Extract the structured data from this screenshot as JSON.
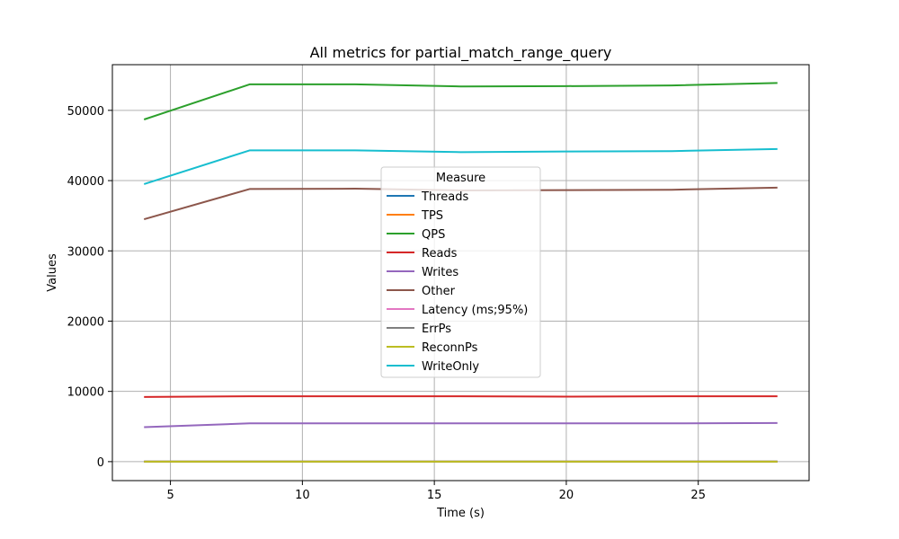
{
  "chart_data": {
    "type": "line",
    "title": "All metrics for partial_match_range_query",
    "xlabel": "Time (s)",
    "ylabel": "Values",
    "xlim": [
      2.8,
      29.2
    ],
    "ylim": [
      -2700,
      56500
    ],
    "xticks": [
      5,
      10,
      15,
      20,
      25
    ],
    "yticks": [
      0,
      10000,
      20000,
      30000,
      40000,
      50000
    ],
    "grid": true,
    "legend": {
      "title": "Measure",
      "placement": "center"
    },
    "x": [
      4,
      8,
      12,
      16,
      20,
      24,
      28
    ],
    "series": [
      {
        "name": "Threads",
        "color": "#1f77b4",
        "values": [
          16,
          16,
          16,
          16,
          16,
          16,
          16
        ]
      },
      {
        "name": "TPS",
        "color": "#ff7f0e",
        "values": [
          0,
          0,
          0,
          0,
          0,
          0,
          0
        ]
      },
      {
        "name": "QPS",
        "color": "#2ca02c",
        "values": [
          48700,
          53700,
          53700,
          53400,
          53450,
          53550,
          53900
        ]
      },
      {
        "name": "Reads",
        "color": "#d62728",
        "values": [
          9200,
          9300,
          9300,
          9300,
          9250,
          9300,
          9300
        ]
      },
      {
        "name": "Writes",
        "color": "#9467bd",
        "values": [
          4900,
          5450,
          5450,
          5450,
          5450,
          5450,
          5500
        ]
      },
      {
        "name": "Other",
        "color": "#8c564b",
        "values": [
          34500,
          38800,
          38850,
          38600,
          38650,
          38700,
          39000
        ]
      },
      {
        "name": "Latency (ms;95%)",
        "color": "#e377c2",
        "values": [
          0,
          0,
          0,
          0,
          0,
          0,
          0
        ]
      },
      {
        "name": "ErrPs",
        "color": "#7f7f7f",
        "values": [
          0,
          0,
          0,
          0,
          0,
          0,
          0
        ]
      },
      {
        "name": "ReconnPs",
        "color": "#bcbd22",
        "values": [
          0,
          0,
          0,
          0,
          0,
          0,
          0
        ]
      },
      {
        "name": "WriteOnly",
        "color": "#17becf",
        "values": [
          39500,
          44300,
          44300,
          44050,
          44150,
          44200,
          44500
        ]
      }
    ]
  }
}
